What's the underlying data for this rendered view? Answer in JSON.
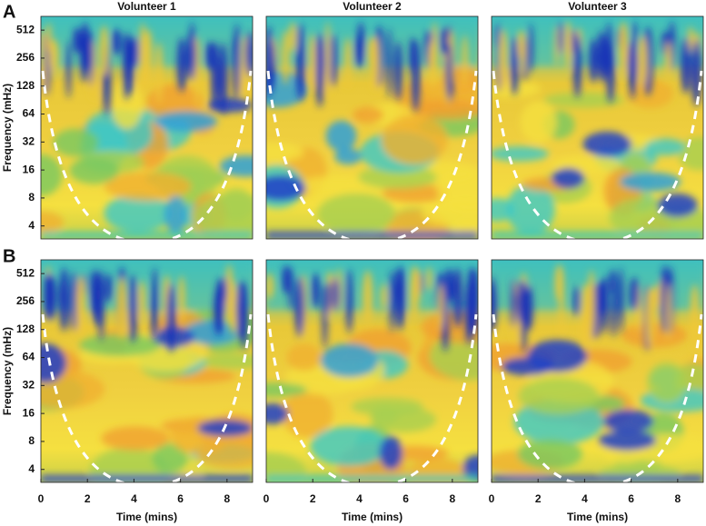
{
  "panel_labels": [
    "A",
    "B"
  ],
  "chart_data": [
    {
      "type": "heatmap",
      "title": "Volunteer 1",
      "ylabel": "Frequency (mHz)",
      "log_y": true,
      "xlim": [
        0,
        9.1
      ],
      "ylim": [
        2.9,
        720
      ],
      "yticks": [
        4,
        8,
        16,
        32,
        64,
        128,
        256,
        512
      ]
    },
    {
      "type": "heatmap",
      "title": "Volunteer 2",
      "log_y": true,
      "xlim": [
        0,
        9.1
      ],
      "ylim": [
        2.9,
        720
      ]
    },
    {
      "type": "heatmap",
      "title": "Volunteer 3",
      "log_y": true,
      "xlim": [
        0,
        9.1
      ],
      "ylim": [
        2.9,
        720
      ]
    },
    {
      "type": "heatmap",
      "ylabel": "Frequency (mHz)",
      "xlabel": "Time (mins)",
      "log_y": true,
      "xlim": [
        0,
        9.1
      ],
      "ylim": [
        2.9,
        720
      ],
      "xticks": [
        0,
        2,
        4,
        6,
        8
      ],
      "yticks": [
        4,
        8,
        16,
        32,
        64,
        128,
        256,
        512
      ]
    },
    {
      "type": "heatmap",
      "xlabel": "Time (mins)",
      "log_y": true,
      "xlim": [
        0,
        9.1
      ],
      "ylim": [
        2.9,
        720
      ],
      "xticks": [
        0,
        2,
        4,
        6,
        8
      ]
    },
    {
      "type": "heatmap",
      "xlabel": "Time (mins)",
      "log_y": true,
      "xlim": [
        0,
        9.1
      ],
      "ylim": [
        2.9,
        720
      ],
      "xticks": [
        0,
        2,
        4,
        6,
        8
      ]
    }
  ]
}
